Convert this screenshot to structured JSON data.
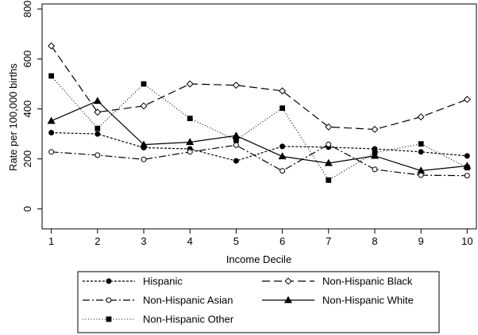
{
  "chart_data": {
    "type": "line",
    "xlabel": "Income Decile",
    "ylabel": "Rate per 100,000 births",
    "x": [
      1,
      2,
      3,
      4,
      5,
      6,
      7,
      8,
      9,
      10
    ],
    "xticks": [
      "1",
      "2",
      "3",
      "4",
      "5",
      "6",
      "7",
      "8",
      "9",
      "10"
    ],
    "yticks": [
      "0",
      "200",
      "400",
      "600",
      "800"
    ],
    "xlim": [
      0.8,
      10.2
    ],
    "ylim": [
      -80,
      820
    ],
    "grid": false,
    "legend_position": "bottom",
    "series": [
      {
        "name": "Hispanic",
        "values": [
          305,
          300,
          245,
          240,
          192,
          250,
          247,
          240,
          228,
          212
        ],
        "line": "short-dash",
        "marker": "filled-circle"
      },
      {
        "name": "Non-Hispanic Black",
        "values": [
          652,
          387,
          412,
          500,
          495,
          472,
          328,
          318,
          368,
          438
        ],
        "line": "long-dash",
        "marker": "hollow-diamond"
      },
      {
        "name": "Non-Hispanic Asian",
        "values": [
          228,
          215,
          198,
          228,
          255,
          152,
          258,
          158,
          135,
          133
        ],
        "line": "dash-dot",
        "marker": "hollow-circle"
      },
      {
        "name": "Non-Hispanic White",
        "values": [
          352,
          432,
          257,
          267,
          293,
          210,
          183,
          212,
          153,
          172
        ],
        "line": "solid",
        "marker": "filled-triangle"
      },
      {
        "name": "Non-Hispanic Other",
        "values": [
          532,
          322,
          500,
          362,
          275,
          403,
          115,
          225,
          260,
          165
        ],
        "line": "dotted",
        "marker": "filled-square"
      }
    ]
  }
}
